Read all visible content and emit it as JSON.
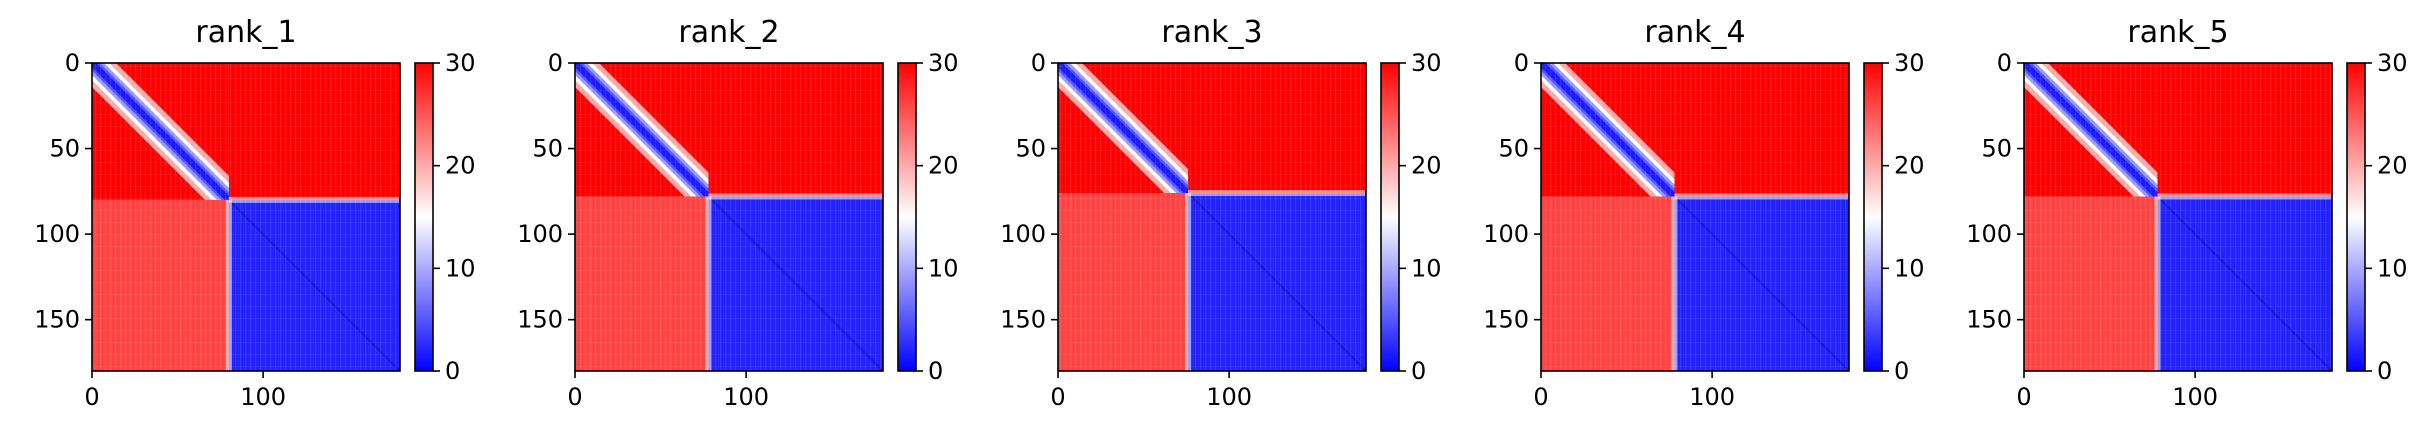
{
  "chart_data": [
    {
      "type": "heatmap",
      "title": "rank_1",
      "matrix_size": 180,
      "split_index": 80,
      "xlim": [
        0,
        180
      ],
      "ylim": [
        180,
        0
      ],
      "xticks": [
        0,
        100
      ],
      "yticks": [
        0,
        50,
        100,
        150
      ],
      "colorbar": {
        "range": [
          0,
          30
        ],
        "ticks": [
          0,
          10,
          20,
          30
        ],
        "colors": [
          "#0000ff",
          "#ffffff",
          "#ff0000"
        ]
      },
      "blocks": {
        "block_1_1": "low, diagonal band",
        "block_1_2": 30,
        "block_2_1": 26,
        "block_2_2": 2
      }
    },
    {
      "type": "heatmap",
      "title": "rank_2",
      "matrix_size": 180,
      "split_index": 78,
      "xlim": [
        0,
        180
      ],
      "ylim": [
        180,
        0
      ],
      "xticks": [
        0,
        100
      ],
      "yticks": [
        0,
        50,
        100,
        150
      ],
      "colorbar": {
        "range": [
          0,
          30
        ],
        "ticks": [
          0,
          10,
          20,
          30
        ],
        "colors": [
          "#0000ff",
          "#ffffff",
          "#ff0000"
        ]
      },
      "blocks": {
        "block_1_1": "low, diagonal band",
        "block_1_2": 30,
        "block_2_1": 26,
        "block_2_2": 2
      }
    },
    {
      "type": "heatmap",
      "title": "rank_3",
      "matrix_size": 180,
      "split_index": 76,
      "xlim": [
        0,
        180
      ],
      "ylim": [
        180,
        0
      ],
      "xticks": [
        0,
        100
      ],
      "yticks": [
        0,
        50,
        100,
        150
      ],
      "colorbar": {
        "range": [
          0,
          30
        ],
        "ticks": [
          0,
          10,
          20,
          30
        ],
        "colors": [
          "#0000ff",
          "#ffffff",
          "#ff0000"
        ]
      },
      "blocks": {
        "block_1_1": "low, diagonal band",
        "block_1_2": 30,
        "block_2_1": 26,
        "block_2_2": 2
      }
    },
    {
      "type": "heatmap",
      "title": "rank_4",
      "matrix_size": 180,
      "split_index": 78,
      "xlim": [
        0,
        180
      ],
      "ylim": [
        180,
        0
      ],
      "xticks": [
        0,
        100
      ],
      "yticks": [
        0,
        50,
        100,
        150
      ],
      "colorbar": {
        "range": [
          0,
          30
        ],
        "ticks": [
          0,
          10,
          20,
          30
        ],
        "colors": [
          "#0000ff",
          "#ffffff",
          "#ff0000"
        ]
      },
      "blocks": {
        "block_1_1": "low, diagonal band",
        "block_1_2": 30,
        "block_2_1": 26,
        "block_2_2": 2
      }
    },
    {
      "type": "heatmap",
      "title": "rank_5",
      "matrix_size": 180,
      "split_index": 78,
      "xlim": [
        0,
        180
      ],
      "ylim": [
        180,
        0
      ],
      "xticks": [
        0,
        100
      ],
      "yticks": [
        0,
        50,
        100,
        150
      ],
      "colorbar": {
        "range": [
          0,
          30
        ],
        "ticks": [
          0,
          10,
          20,
          30
        ],
        "colors": [
          "#0000ff",
          "#ffffff",
          "#ff0000"
        ]
      },
      "blocks": {
        "block_1_1": "low, diagonal band",
        "block_1_2": 30,
        "block_2_1": 26,
        "block_2_2": 2
      }
    }
  ]
}
